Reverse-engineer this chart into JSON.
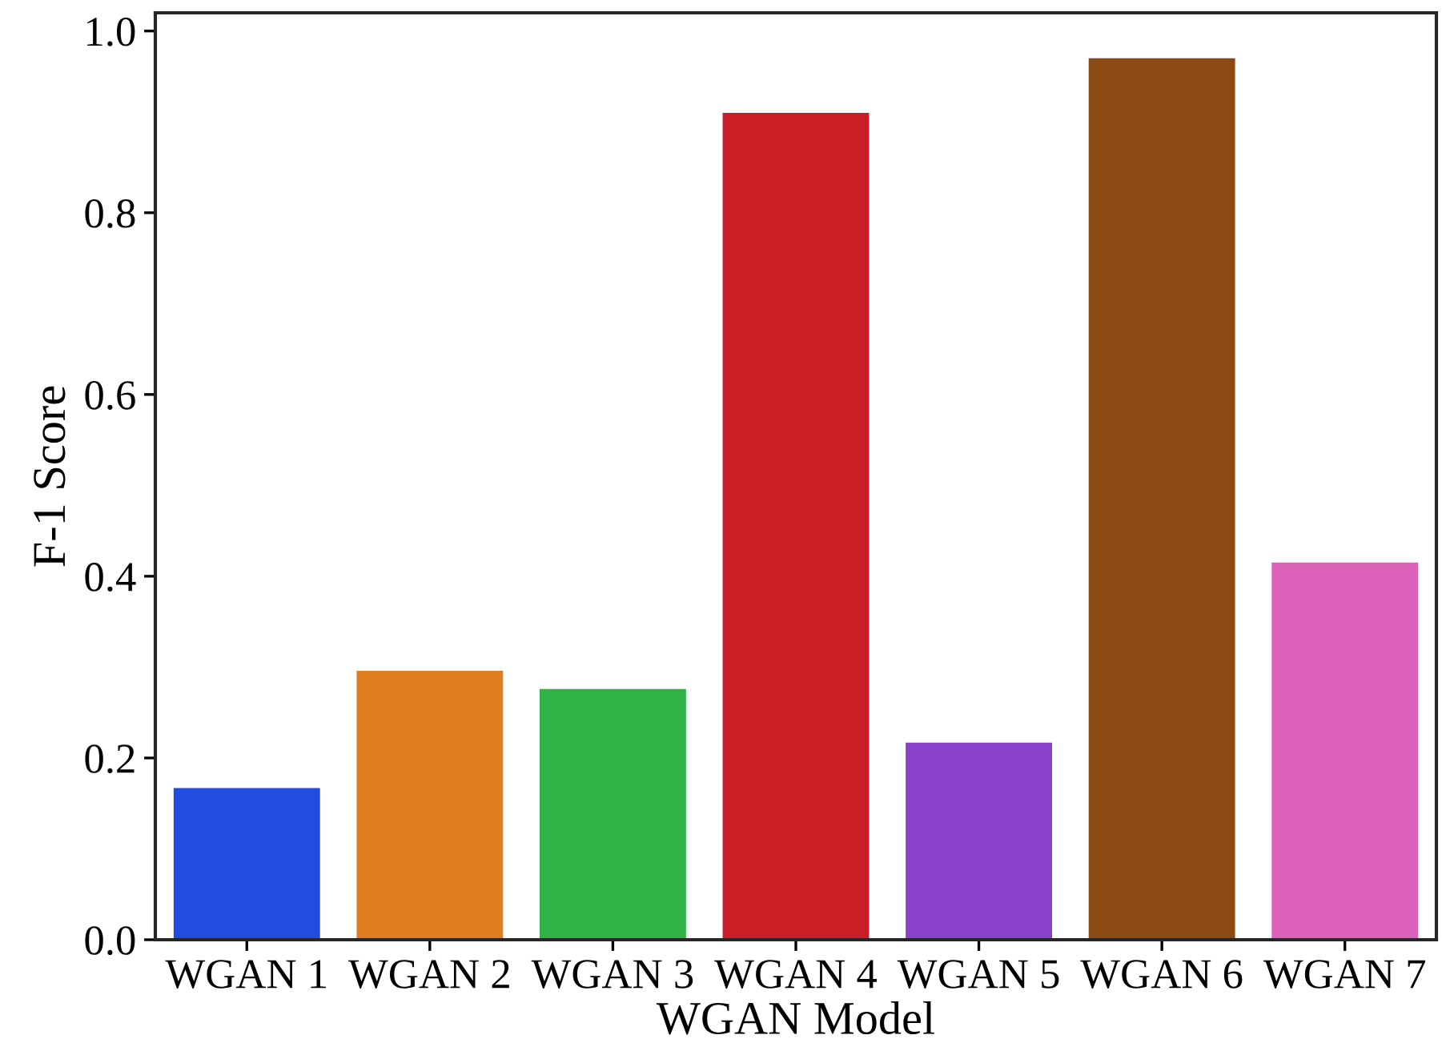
{
  "chart_data": {
    "type": "bar",
    "xlabel": "WGAN Model",
    "ylabel": "F-1 Score",
    "categories": [
      "WGAN 1",
      "WGAN 2",
      "WGAN 3",
      "WGAN 4",
      "WGAN 5",
      "WGAN 6",
      "WGAN 7"
    ],
    "values": [
      0.167,
      0.296,
      0.276,
      0.91,
      0.217,
      0.97,
      0.415
    ],
    "colors": [
      "#204de0",
      "#df7d20",
      "#30b346",
      "#cb1d25",
      "#8a42cb",
      "#8b4a14",
      "#dc61b8"
    ],
    "ylim": [
      0,
      1.02
    ],
    "yticks": [
      {
        "value": 0,
        "label": "0.0"
      },
      0.2,
      0.4,
      0.6,
      0.8,
      {
        "value": 1,
        "label": "1.0"
      }
    ],
    "grid": false,
    "legend": false
  }
}
